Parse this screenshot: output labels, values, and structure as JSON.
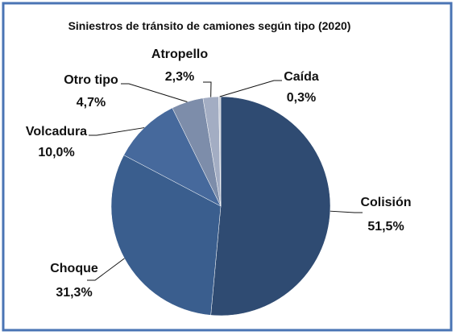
{
  "chart_data": {
    "type": "pie",
    "title": "Siniestros de tránsito de camiones según tipo (2020)",
    "categories": [
      "Colisión",
      "Choque",
      "Volcadura",
      "Otro tipo",
      "Atropello",
      "Caída"
    ],
    "values": [
      51.5,
      31.3,
      10.0,
      4.7,
      2.3,
      0.3
    ],
    "value_labels": [
      "51,5%",
      "31,3%",
      "10,0%",
      "4,7%",
      "2,3%",
      "0,3%"
    ],
    "colors": [
      "#2f4b72",
      "#3a5e8e",
      "#46699c",
      "#7d8daa",
      "#a3adc3",
      "#c9ced9"
    ]
  }
}
